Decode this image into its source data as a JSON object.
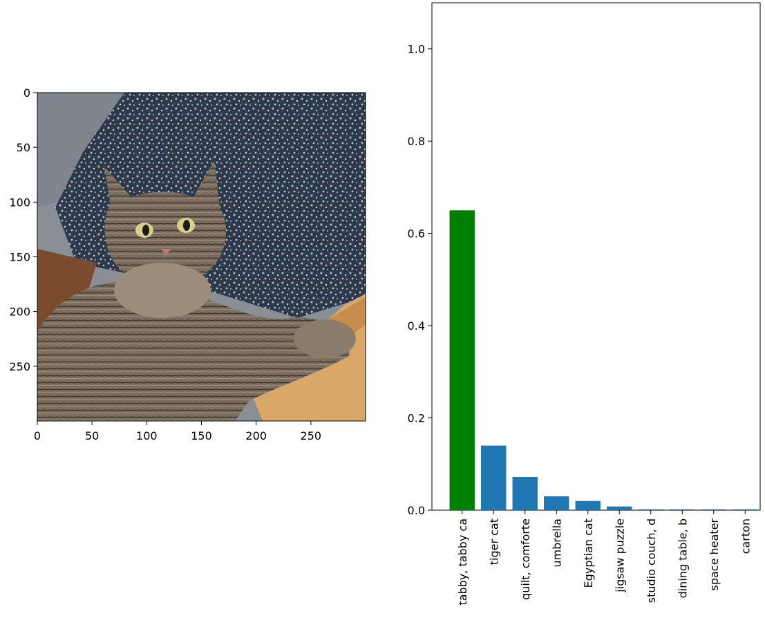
{
  "chart_data": [
    {
      "type": "image",
      "content": "photo of a tabby cat lying on a floral blue cushion with its paw resting on a wooden box",
      "x_ticks": [
        0,
        50,
        100,
        150,
        200,
        250
      ],
      "y_ticks": [
        0,
        50,
        100,
        150,
        200,
        250
      ],
      "xlim": [
        0,
        299
      ],
      "ylim": [
        299,
        0
      ]
    },
    {
      "type": "bar",
      "categories": [
        "tabby, tabby ca",
        "tiger cat",
        "quilt, comforte",
        "umbrella",
        "Egyptian cat",
        "jigsaw puzzle",
        "studio couch, d",
        "dining table, b",
        "space heater",
        "carton"
      ],
      "values": [
        0.65,
        0.14,
        0.072,
        0.03,
        0.02,
        0.008,
        0.002,
        0.002,
        0.002,
        0.002
      ],
      "bar_colors": [
        "#008000",
        "#1f77b4",
        "#1f77b4",
        "#1f77b4",
        "#1f77b4",
        "#1f77b4",
        "#1f77b4",
        "#1f77b4",
        "#1f77b4",
        "#1f77b4"
      ],
      "y_ticks": [
        "0.0",
        "0.2",
        "0.4",
        "0.6",
        "0.8",
        "1.0"
      ],
      "ylim": [
        0,
        1.1
      ],
      "grid": false
    }
  ]
}
